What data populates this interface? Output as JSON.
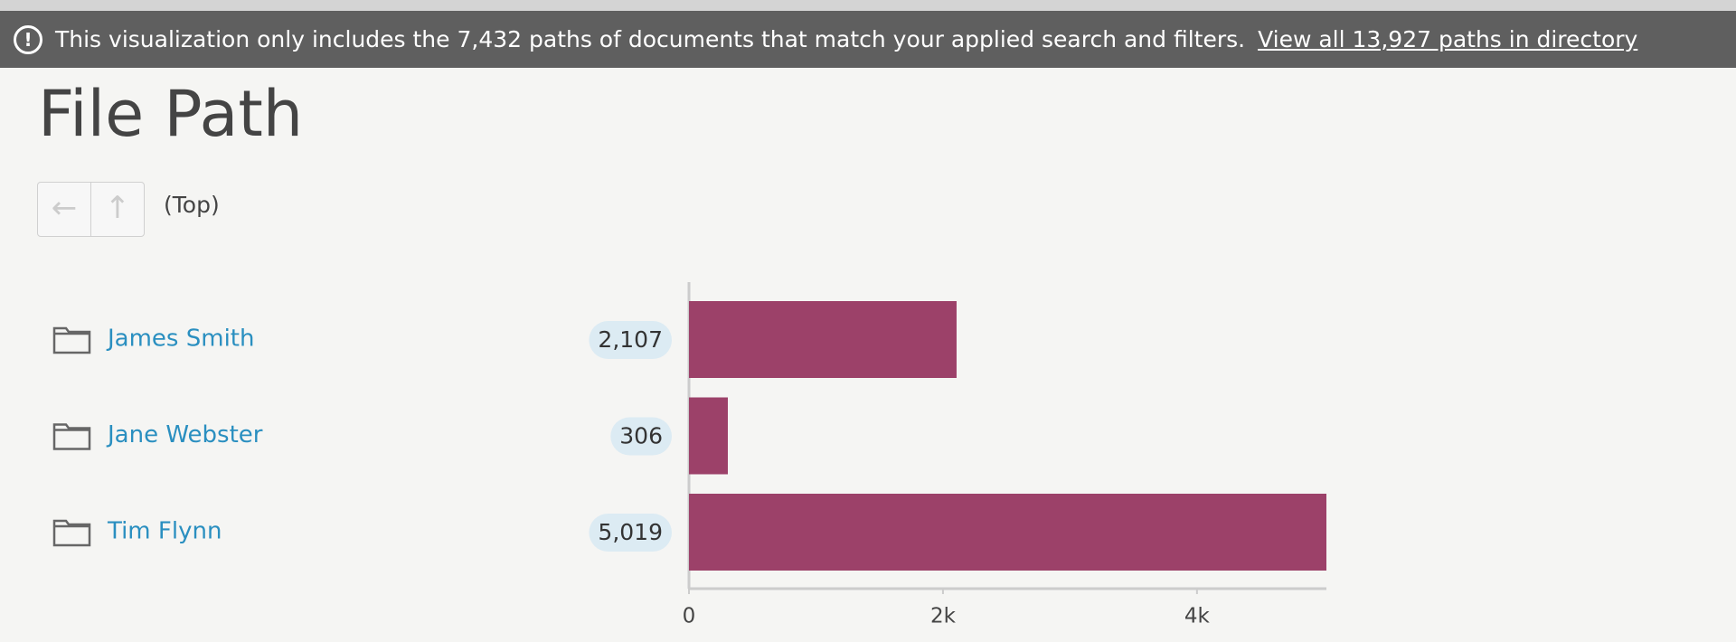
{
  "banner": {
    "text": "This visualization only includes the 7,432 paths of documents that match your applied search and filters.",
    "link": "View all 13,927 paths in directory"
  },
  "header": {
    "title": "File Path"
  },
  "breadcrumb": "(Top)",
  "chart_data": {
    "type": "bar",
    "orientation": "horizontal",
    "categories": [
      "James Smith",
      "Jane Webster",
      "Tim Flynn"
    ],
    "values": [
      2107,
      306,
      5019
    ],
    "value_labels": [
      "2,107",
      "306",
      "5,019"
    ],
    "color": "#9c4169",
    "xlim": [
      0,
      5019
    ],
    "xticks": [
      0,
      {
        "value": 2000,
        "label": "2k"
      },
      {
        "value": 4000,
        "label": "4k"
      }
    ]
  }
}
